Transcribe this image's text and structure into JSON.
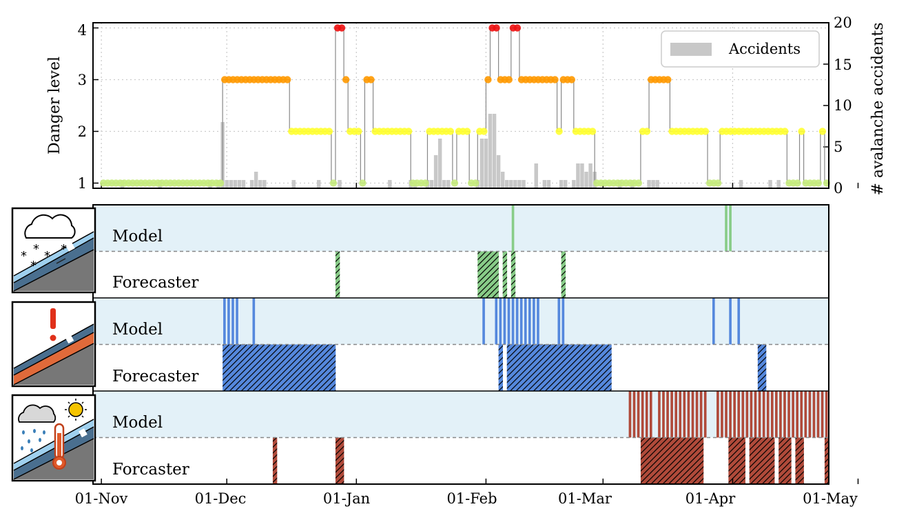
{
  "chart_data": [
    {
      "type": "line",
      "ylabel": "Danger level",
      "y2label": "# avalanche accidents",
      "yticks": [
        "1",
        "2",
        "3",
        "4"
      ],
      "y2ticks": [
        "0",
        "5",
        "10",
        "15",
        "20"
      ],
      "ylim": [
        0.9,
        4.1
      ],
      "y2lim": [
        0,
        20
      ],
      "xticks": [
        "01-Nov",
        "01-Dec",
        "01-Jan",
        "01-Feb",
        "01-Mar",
        "01-Apr",
        "01-May"
      ],
      "xtick_days": [
        0,
        30,
        61,
        92,
        120,
        151,
        181
      ],
      "xlim": [
        -2,
        174
      ],
      "grid": true,
      "legend": {
        "position": "top-right",
        "entries": [
          "Accidents"
        ]
      },
      "colors": {
        "1": "#c6ec7d",
        "2": "#ffff33",
        "3": "#ff9900",
        "4": "#ee1111",
        "line": "#888888",
        "bars": "#c8c8c8"
      },
      "series": [
        {
          "name": "Danger level",
          "segments": [
            [
              0,
              29,
              1
            ],
            [
              29,
              45,
              3
            ],
            [
              45,
              55,
              2
            ],
            [
              55,
              56,
              1
            ],
            [
              56,
              58,
              4
            ],
            [
              58,
              59,
              3
            ],
            [
              59,
              62,
              2
            ],
            [
              62,
              63,
              1
            ],
            [
              63,
              65,
              3
            ],
            [
              65,
              74,
              2
            ],
            [
              74,
              78,
              1
            ],
            [
              78,
              84,
              2
            ],
            [
              84,
              85,
              1
            ],
            [
              85,
              88,
              2
            ],
            [
              88,
              90,
              1
            ],
            [
              90,
              92,
              2
            ],
            [
              92,
              93,
              3
            ],
            [
              93,
              95,
              4
            ],
            [
              95,
              98,
              3
            ],
            [
              98,
              100,
              4
            ],
            [
              100,
              109,
              3
            ],
            [
              109,
              110,
              2
            ],
            [
              110,
              113,
              3
            ],
            [
              113,
              118,
              2
            ],
            [
              118,
              129,
              1
            ],
            [
              129,
              131,
              2
            ],
            [
              131,
              136,
              3
            ],
            [
              136,
              145,
              2
            ],
            [
              145,
              148,
              1
            ],
            [
              148,
              164,
              2
            ],
            [
              164,
              167,
              1
            ],
            [
              167,
              168,
              2
            ],
            [
              168,
              172,
              1
            ],
            [
              172,
              173,
              2
            ],
            [
              173,
              174,
              1
            ]
          ]
        },
        {
          "name": "Accidents",
          "bars": [
            [
              5,
              1
            ],
            [
              14,
              1
            ],
            [
              26,
              1
            ],
            [
              28,
              1
            ],
            [
              29,
              8
            ],
            [
              30,
              1
            ],
            [
              31,
              1
            ],
            [
              32,
              1
            ],
            [
              33,
              1
            ],
            [
              34,
              1
            ],
            [
              36,
              1
            ],
            [
              37,
              2
            ],
            [
              38,
              1
            ],
            [
              39,
              1
            ],
            [
              46,
              1
            ],
            [
              52,
              1
            ],
            [
              57,
              1
            ],
            [
              69,
              1
            ],
            [
              74,
              1
            ],
            [
              75,
              1
            ],
            [
              78,
              1
            ],
            [
              79,
              1
            ],
            [
              80,
              4
            ],
            [
              81,
              6
            ],
            [
              82,
              1
            ],
            [
              83,
              1
            ],
            [
              90,
              1
            ],
            [
              91,
              6
            ],
            [
              92,
              6
            ],
            [
              93,
              9
            ],
            [
              94,
              9
            ],
            [
              95,
              4
            ],
            [
              96,
              2
            ],
            [
              97,
              1
            ],
            [
              98,
              1
            ],
            [
              99,
              1
            ],
            [
              100,
              1
            ],
            [
              101,
              1
            ],
            [
              104,
              3
            ],
            [
              106,
              1
            ],
            [
              107,
              1
            ],
            [
              110,
              1
            ],
            [
              111,
              1
            ],
            [
              113,
              1
            ],
            [
              114,
              3
            ],
            [
              115,
              3
            ],
            [
              116,
              2
            ],
            [
              117,
              3
            ],
            [
              118,
              2
            ],
            [
              124,
              1
            ],
            [
              127,
              1
            ],
            [
              131,
              1
            ],
            [
              132,
              1
            ],
            [
              133,
              1
            ],
            [
              153,
              1
            ],
            [
              160,
              1
            ],
            [
              162,
              1
            ]
          ]
        }
      ]
    },
    {
      "type": "event-strip",
      "xlim": [
        -2,
        174
      ],
      "xticks": [
        "01-Nov",
        "01-Dec",
        "01-Jan",
        "01-Feb",
        "01-Mar",
        "01-Apr",
        "01-May"
      ],
      "panels": [
        {
          "name": "new snow",
          "icon": "snow-cloud-icon",
          "color": "#88cc88",
          "model_label": "Model",
          "forecaster_label": "Forecaster",
          "model_days": [
            98,
            149,
            150
          ],
          "forecaster_days": [
            56,
            90,
            91,
            92,
            93,
            94,
            96,
            98,
            110
          ]
        },
        {
          "name": "persistent weak layer",
          "icon": "warning-layer-icon",
          "color": "#5588dd",
          "model_days": [
            29,
            30,
            31,
            32,
            36,
            91,
            94,
            95,
            96,
            97,
            98,
            99,
            100,
            101,
            102,
            103,
            104,
            109,
            110,
            146,
            150,
            152
          ],
          "forecaster_days": [
            29,
            30,
            31,
            32,
            33,
            34,
            35,
            36,
            37,
            38,
            39,
            40,
            41,
            42,
            43,
            44,
            45,
            46,
            47,
            48,
            49,
            50,
            51,
            52,
            53,
            54,
            55,
            95,
            97,
            98,
            99,
            100,
            101,
            102,
            103,
            104,
            105,
            106,
            107,
            108,
            109,
            110,
            111,
            112,
            113,
            114,
            115,
            116,
            117,
            118,
            119,
            120,
            121,
            157,
            158
          ],
          "model_label": "Model",
          "forecaster_label": "Forecaster"
        },
        {
          "name": "wet snow",
          "icon": "sun-rain-thermometer-icon",
          "color": "#b04a3a",
          "model_days": [
            126,
            127,
            128,
            129,
            130,
            131,
            133,
            134,
            135,
            136,
            137,
            138,
            139,
            140,
            141,
            142,
            143,
            144,
            147,
            148,
            149,
            150,
            151,
            152,
            153,
            154,
            155,
            156,
            157,
            158,
            159,
            160,
            161,
            162,
            163,
            164,
            165,
            166,
            167,
            168,
            169,
            170,
            171,
            172,
            173
          ],
          "forecaster_days": [
            41,
            56,
            57,
            129,
            130,
            131,
            132,
            133,
            134,
            135,
            136,
            137,
            138,
            139,
            140,
            141,
            142,
            143,
            150,
            151,
            152,
            153,
            155,
            156,
            157,
            158,
            159,
            160,
            162,
            163,
            164,
            166,
            167,
            173
          ],
          "model_label": "Model",
          "forecaster_label": "Forcaster"
        }
      ]
    }
  ]
}
